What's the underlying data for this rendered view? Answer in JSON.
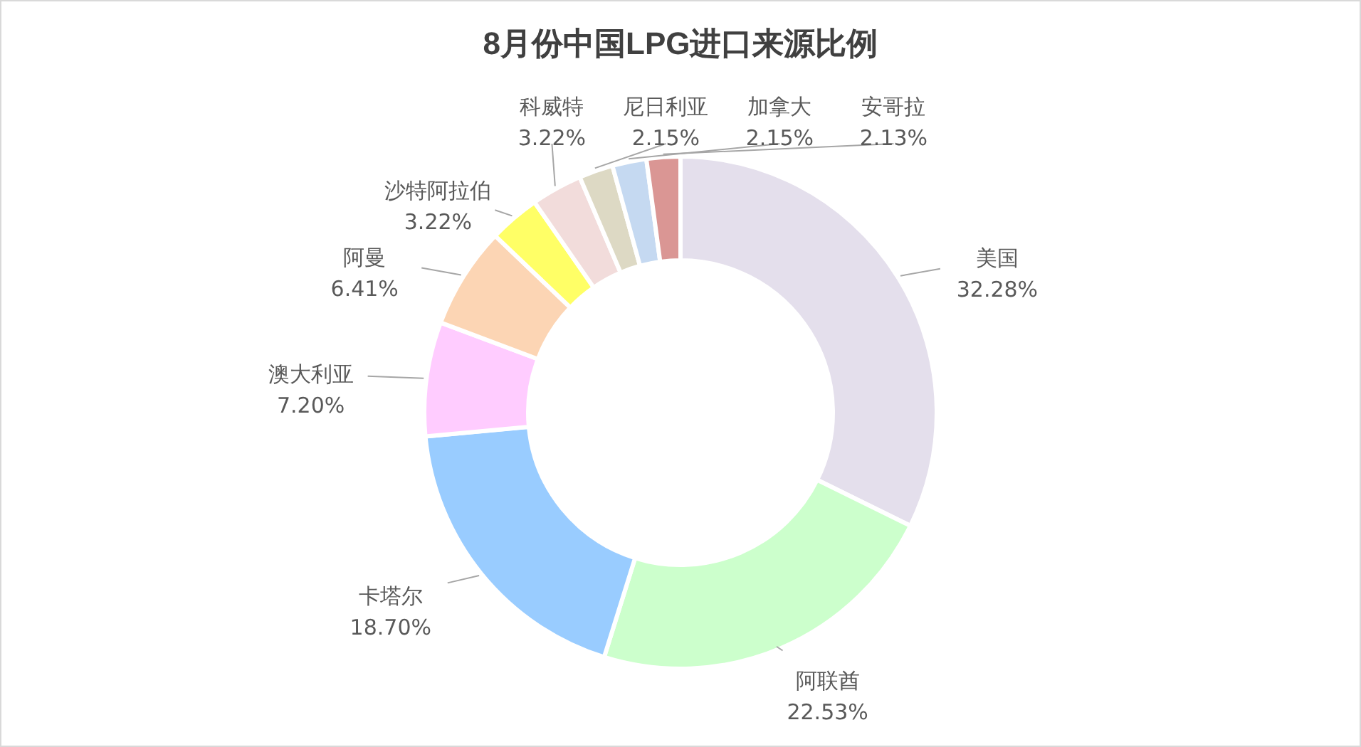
{
  "chart_data": {
    "type": "donut",
    "title": "8月份中国LPG进口来源比例",
    "categories": [
      "美国",
      "阿联酋",
      "卡塔尔",
      "澳大利亚",
      "阿曼",
      "沙特阿拉伯",
      "科威特",
      "尼日利亚",
      "加拿大",
      "安哥拉"
    ],
    "values": [
      32.28,
      22.53,
      18.7,
      7.2,
      6.41,
      3.22,
      3.22,
      2.15,
      2.15,
      2.13
    ],
    "value_labels": [
      "32.28%",
      "22.53%",
      "18.70%",
      "7.20%",
      "6.41%",
      "3.22%",
      "3.22%",
      "2.15%",
      "2.15%",
      "2.13%"
    ],
    "colors": [
      "#e4dfec",
      "#ccffcc",
      "#99ccff",
      "#ffccff",
      "#fcd5b4",
      "#ffff66",
      "#f2dcdb",
      "#ddd9c4",
      "#c5d9f1",
      "#da9694"
    ],
    "legend": false
  }
}
